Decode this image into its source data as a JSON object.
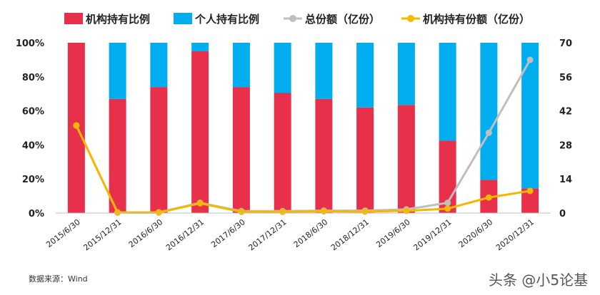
{
  "chart_data": {
    "type": "bar",
    "stacked": true,
    "categories": [
      "2015/6/30",
      "2015/12/31",
      "2016/6/30",
      "2016/12/31",
      "2017/6/30",
      "2017/12/31",
      "2018/6/30",
      "2018/12/31",
      "2019/6/30",
      "2019/12/31",
      "2020/6/30",
      "2020/12/31"
    ],
    "series": [
      {
        "name": "机构持有比例",
        "kind": "bar",
        "axis": "left",
        "color": "#e8304a",
        "values": [
          100,
          67,
          74,
          95,
          74,
          70.5,
          67,
          62,
          63.5,
          42.5,
          19.5,
          14.5
        ]
      },
      {
        "name": "个人持有比例",
        "kind": "bar",
        "axis": "left",
        "color": "#00aeef",
        "values": [
          0,
          33,
          26,
          5,
          26,
          29.5,
          33,
          38,
          36.5,
          57.5,
          80.5,
          85.5
        ]
      },
      {
        "name": "总份额（亿份）",
        "kind": "line",
        "axis": "right",
        "color": "#bfbfbf",
        "values": [
          36,
          0.3,
          0.3,
          4.2,
          0.8,
          0.8,
          1.0,
          1.0,
          1.5,
          4.2,
          33,
          63
        ]
      },
      {
        "name": "机构持有份额（亿份）",
        "kind": "line",
        "axis": "right",
        "color": "#f5b800",
        "values": [
          36,
          0.2,
          0.2,
          4.0,
          0.5,
          0.5,
          0.7,
          0.6,
          0.9,
          1.8,
          6.4,
          9.1
        ]
      }
    ],
    "yleft": {
      "min": 0,
      "max": 100,
      "ticks": [
        "0%",
        "20%",
        "40%",
        "60%",
        "80%",
        "100%"
      ]
    },
    "yright": {
      "min": 0,
      "max": 70,
      "ticks": [
        "0",
        "14",
        "28",
        "42",
        "56",
        "70"
      ]
    },
    "legend_position": "top",
    "grid": false
  },
  "source_note": "数据来源：Wind",
  "watermark": "头条 @小5论基"
}
